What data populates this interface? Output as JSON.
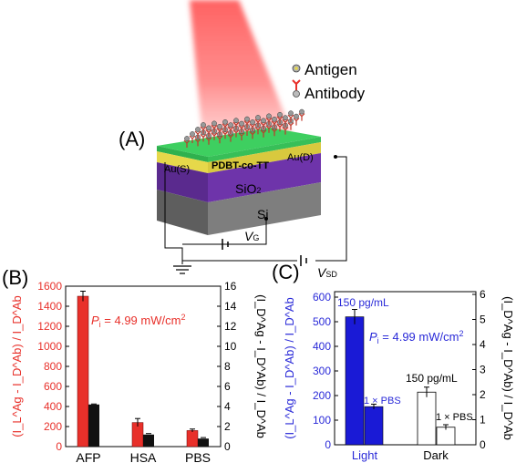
{
  "panel_a": {
    "label": "(A)",
    "legend": {
      "antigen": "Antigen",
      "antibody": "Antibody"
    },
    "layers": {
      "source": "Au(S)",
      "polymer": "PDBT-co-TT",
      "drain": "Au(D)",
      "oxide": "SiO",
      "oxide_sub": "2",
      "substrate": "Si"
    },
    "labels": {
      "vg": "V",
      "vg_sub": "G",
      "vsd": "V",
      "vsd_sub": "SD"
    },
    "colors": {
      "light": "#ff6b6b",
      "polymer": "#4cc36a",
      "gold": "#e6d84a",
      "oxide": "#6a2fa0",
      "substrate": "#7a7a7a"
    },
    "icons": [
      "antigen-icon",
      "antibody-icon",
      "ground-icon",
      "battery-icon"
    ]
  },
  "panel_b": {
    "label": "(B)",
    "annotation_p": "P",
    "annotation_sub": "i",
    "annotation_rest": " = 4.99 mW/cm",
    "annotation_sup": "2",
    "ylabel_left": "(I_L^Ag - I_D^Ab) / I_D^Ab",
    "ylabel_right": "(I_D^Ag - I_D^Ab) / I_D^Ab",
    "left_ticks": [
      "0",
      "200",
      "400",
      "600",
      "800",
      "1000",
      "1200",
      "1400",
      "1600"
    ],
    "right_ticks": [
      "0",
      "2",
      "4",
      "6",
      "8",
      "10",
      "12",
      "14",
      "16"
    ],
    "colors": {
      "left": "#e8302a",
      "right": "#000000"
    }
  },
  "panel_c": {
    "label": "(C)",
    "annotation_p": "P",
    "annotation_sub": "i",
    "annotation_rest": " = 4.99 mW/cm",
    "annotation_sup": "2",
    "ylabel_left": "(I_L^Ag - I_D^Ab) / I_D^Ab",
    "ylabel_right": "(I_D^Ag - I_D^Ab) / I_D^Ab",
    "left_ticks": [
      "0",
      "100",
      "200",
      "300",
      "400",
      "500",
      "600"
    ],
    "right_ticks": [
      "0",
      "1",
      "2",
      "3",
      "4",
      "5",
      "6"
    ],
    "bar_labels": {
      "light_conc": "150 pg/mL",
      "light_pbs": "1 × PBS",
      "dark_conc": "150 pg/mL",
      "dark_pbs": "1 × PBS"
    },
    "colors": {
      "left": "#2a2ad8",
      "right": "#000000"
    }
  },
  "chart_data": [
    {
      "type": "bar",
      "categories": [
        "AFP",
        "HSA",
        "PBS"
      ],
      "ylim": [
        0,
        1600
      ],
      "y2lim": [
        0,
        16
      ],
      "series": [
        {
          "axis": "left",
          "color": "#e8302a",
          "values": [
            1500,
            240,
            160
          ],
          "errors": [
            50,
            40,
            15
          ]
        },
        {
          "axis": "right",
          "color": "#111111",
          "values": [
            4.2,
            1.2,
            0.8
          ],
          "errors": [
            0.05,
            0.1,
            0.1
          ]
        }
      ],
      "grid": false
    },
    {
      "type": "bar",
      "categories": [
        "Light",
        "Dark"
      ],
      "ylim": [
        0,
        600
      ],
      "y2lim": [
        0,
        6.4
      ],
      "series": [
        {
          "axis": "left",
          "group": "Light",
          "values": [
            520,
            155
          ],
          "errors": [
            30,
            10
          ],
          "fill": "#1a1ad6"
        },
        {
          "axis": "right",
          "group": "Dark",
          "values": [
            2.1,
            0.7
          ],
          "errors": [
            0.2,
            0.1
          ],
          "fill": "#ffffff"
        }
      ],
      "grid": false
    }
  ]
}
